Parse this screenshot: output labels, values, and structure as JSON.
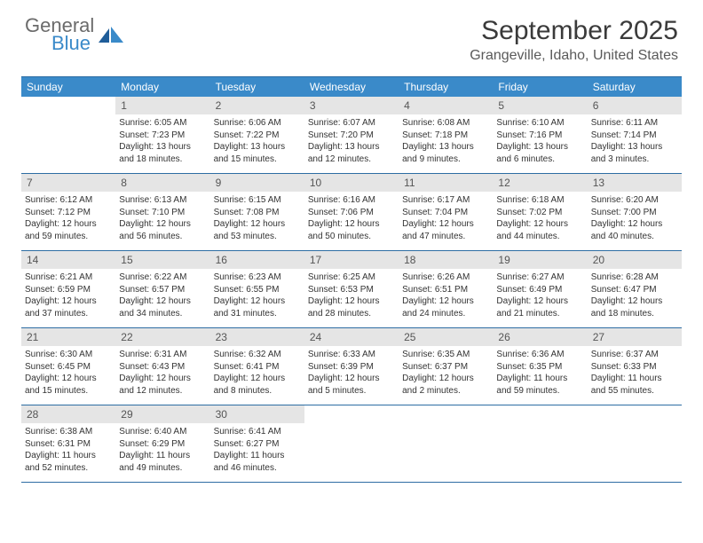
{
  "logo": {
    "general": "General",
    "blue": "Blue"
  },
  "title": "September 2025",
  "location": "Grangeville, Idaho, United States",
  "colors": {
    "header_bg": "#3a8ac9",
    "header_text": "#ffffff",
    "border": "#2d6da3",
    "daynum_bg": "#e5e5e5",
    "daynum_text": "#555555",
    "body_text": "#333333",
    "logo_gray": "#6b6b6b",
    "logo_blue": "#3a8ac9"
  },
  "day_labels": [
    "Sunday",
    "Monday",
    "Tuesday",
    "Wednesday",
    "Thursday",
    "Friday",
    "Saturday"
  ],
  "weeks": [
    [
      {
        "empty": true
      },
      {
        "num": "1",
        "sunrise": "Sunrise: 6:05 AM",
        "sunset": "Sunset: 7:23 PM",
        "daylight": "Daylight: 13 hours and 18 minutes."
      },
      {
        "num": "2",
        "sunrise": "Sunrise: 6:06 AM",
        "sunset": "Sunset: 7:22 PM",
        "daylight": "Daylight: 13 hours and 15 minutes."
      },
      {
        "num": "3",
        "sunrise": "Sunrise: 6:07 AM",
        "sunset": "Sunset: 7:20 PM",
        "daylight": "Daylight: 13 hours and 12 minutes."
      },
      {
        "num": "4",
        "sunrise": "Sunrise: 6:08 AM",
        "sunset": "Sunset: 7:18 PM",
        "daylight": "Daylight: 13 hours and 9 minutes."
      },
      {
        "num": "5",
        "sunrise": "Sunrise: 6:10 AM",
        "sunset": "Sunset: 7:16 PM",
        "daylight": "Daylight: 13 hours and 6 minutes."
      },
      {
        "num": "6",
        "sunrise": "Sunrise: 6:11 AM",
        "sunset": "Sunset: 7:14 PM",
        "daylight": "Daylight: 13 hours and 3 minutes."
      }
    ],
    [
      {
        "num": "7",
        "sunrise": "Sunrise: 6:12 AM",
        "sunset": "Sunset: 7:12 PM",
        "daylight": "Daylight: 12 hours and 59 minutes."
      },
      {
        "num": "8",
        "sunrise": "Sunrise: 6:13 AM",
        "sunset": "Sunset: 7:10 PM",
        "daylight": "Daylight: 12 hours and 56 minutes."
      },
      {
        "num": "9",
        "sunrise": "Sunrise: 6:15 AM",
        "sunset": "Sunset: 7:08 PM",
        "daylight": "Daylight: 12 hours and 53 minutes."
      },
      {
        "num": "10",
        "sunrise": "Sunrise: 6:16 AM",
        "sunset": "Sunset: 7:06 PM",
        "daylight": "Daylight: 12 hours and 50 minutes."
      },
      {
        "num": "11",
        "sunrise": "Sunrise: 6:17 AM",
        "sunset": "Sunset: 7:04 PM",
        "daylight": "Daylight: 12 hours and 47 minutes."
      },
      {
        "num": "12",
        "sunrise": "Sunrise: 6:18 AM",
        "sunset": "Sunset: 7:02 PM",
        "daylight": "Daylight: 12 hours and 44 minutes."
      },
      {
        "num": "13",
        "sunrise": "Sunrise: 6:20 AM",
        "sunset": "Sunset: 7:00 PM",
        "daylight": "Daylight: 12 hours and 40 minutes."
      }
    ],
    [
      {
        "num": "14",
        "sunrise": "Sunrise: 6:21 AM",
        "sunset": "Sunset: 6:59 PM",
        "daylight": "Daylight: 12 hours and 37 minutes."
      },
      {
        "num": "15",
        "sunrise": "Sunrise: 6:22 AM",
        "sunset": "Sunset: 6:57 PM",
        "daylight": "Daylight: 12 hours and 34 minutes."
      },
      {
        "num": "16",
        "sunrise": "Sunrise: 6:23 AM",
        "sunset": "Sunset: 6:55 PM",
        "daylight": "Daylight: 12 hours and 31 minutes."
      },
      {
        "num": "17",
        "sunrise": "Sunrise: 6:25 AM",
        "sunset": "Sunset: 6:53 PM",
        "daylight": "Daylight: 12 hours and 28 minutes."
      },
      {
        "num": "18",
        "sunrise": "Sunrise: 6:26 AM",
        "sunset": "Sunset: 6:51 PM",
        "daylight": "Daylight: 12 hours and 24 minutes."
      },
      {
        "num": "19",
        "sunrise": "Sunrise: 6:27 AM",
        "sunset": "Sunset: 6:49 PM",
        "daylight": "Daylight: 12 hours and 21 minutes."
      },
      {
        "num": "20",
        "sunrise": "Sunrise: 6:28 AM",
        "sunset": "Sunset: 6:47 PM",
        "daylight": "Daylight: 12 hours and 18 minutes."
      }
    ],
    [
      {
        "num": "21",
        "sunrise": "Sunrise: 6:30 AM",
        "sunset": "Sunset: 6:45 PM",
        "daylight": "Daylight: 12 hours and 15 minutes."
      },
      {
        "num": "22",
        "sunrise": "Sunrise: 6:31 AM",
        "sunset": "Sunset: 6:43 PM",
        "daylight": "Daylight: 12 hours and 12 minutes."
      },
      {
        "num": "23",
        "sunrise": "Sunrise: 6:32 AM",
        "sunset": "Sunset: 6:41 PM",
        "daylight": "Daylight: 12 hours and 8 minutes."
      },
      {
        "num": "24",
        "sunrise": "Sunrise: 6:33 AM",
        "sunset": "Sunset: 6:39 PM",
        "daylight": "Daylight: 12 hours and 5 minutes."
      },
      {
        "num": "25",
        "sunrise": "Sunrise: 6:35 AM",
        "sunset": "Sunset: 6:37 PM",
        "daylight": "Daylight: 12 hours and 2 minutes."
      },
      {
        "num": "26",
        "sunrise": "Sunrise: 6:36 AM",
        "sunset": "Sunset: 6:35 PM",
        "daylight": "Daylight: 11 hours and 59 minutes."
      },
      {
        "num": "27",
        "sunrise": "Sunrise: 6:37 AM",
        "sunset": "Sunset: 6:33 PM",
        "daylight": "Daylight: 11 hours and 55 minutes."
      }
    ],
    [
      {
        "num": "28",
        "sunrise": "Sunrise: 6:38 AM",
        "sunset": "Sunset: 6:31 PM",
        "daylight": "Daylight: 11 hours and 52 minutes."
      },
      {
        "num": "29",
        "sunrise": "Sunrise: 6:40 AM",
        "sunset": "Sunset: 6:29 PM",
        "daylight": "Daylight: 11 hours and 49 minutes."
      },
      {
        "num": "30",
        "sunrise": "Sunrise: 6:41 AM",
        "sunset": "Sunset: 6:27 PM",
        "daylight": "Daylight: 11 hours and 46 minutes."
      },
      {
        "empty": true
      },
      {
        "empty": true
      },
      {
        "empty": true
      },
      {
        "empty": true
      }
    ]
  ]
}
